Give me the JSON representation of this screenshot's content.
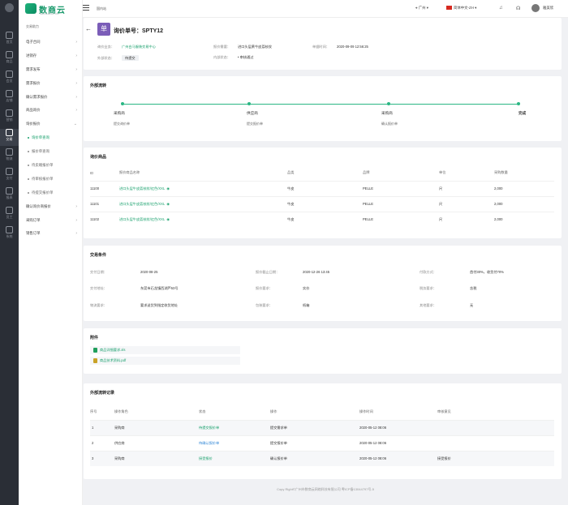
{
  "rail": {
    "items": [
      {
        "label": "首页",
        "active": false
      },
      {
        "label": "商品",
        "active": false
      },
      {
        "label": "会员",
        "active": false
      },
      {
        "label": "店铺",
        "active": false
      },
      {
        "label": "营销",
        "active": false
      },
      {
        "label": "交易",
        "active": true
      },
      {
        "label": "物流",
        "active": false
      },
      {
        "label": "支付",
        "active": false
      },
      {
        "label": "报表",
        "active": false
      },
      {
        "label": "员工",
        "active": false
      },
      {
        "label": "系统",
        "active": false
      }
    ]
  },
  "brand": {
    "name": "数商云",
    "sub": "SHUSHANGYUN"
  },
  "nav": {
    "section": "交易助力",
    "items": [
      {
        "label": "电子合同",
        "arrow": "›"
      },
      {
        "label": "进销存",
        "arrow": "›"
      },
      {
        "label": "需求发布",
        "arrow": "›"
      },
      {
        "label": "需求报价",
        "arrow": "›"
      },
      {
        "label": "确认需求报价",
        "arrow": "›"
      },
      {
        "label": "商品询价",
        "arrow": "›"
      },
      {
        "label": "询价报价",
        "arrow": "⌄"
      }
    ],
    "subitems": [
      {
        "label": "询价单查询",
        "active": true
      },
      {
        "label": "报价单查询",
        "active": false
      },
      {
        "label": "待卖端报价单",
        "active": false
      },
      {
        "label": "待审核报价单",
        "active": false
      },
      {
        "label": "待提交报价单",
        "active": false
      }
    ],
    "items2": [
      {
        "label": "确认询价商报价",
        "arrow": "›"
      },
      {
        "label": "采购订单",
        "arrow": "›"
      },
      {
        "label": "销售订单",
        "arrow": "›"
      }
    ]
  },
  "topbar": {
    "crumb": "国内站",
    "location": "广州",
    "language": "简体中文-ZH",
    "username": "雅美欣"
  },
  "header": {
    "badge": "单",
    "title": "询价单号：SPTY12",
    "fields": [
      {
        "k": "询价业务：",
        "v": "广州白马服装交易中心",
        "green": true
      },
      {
        "k": "报价需要：",
        "v": "进口头层黄牛皮荔枝纹",
        "green": false
      },
      {
        "k": "单据时间：",
        "v": "2020-09-09 12:56:25",
        "green": false
      },
      {
        "k": "外部状态：",
        "v": "待提交",
        "green": false
      },
      {
        "k": "内部状态：",
        "v": "• 审核通过",
        "green": false
      }
    ]
  },
  "flow": {
    "title": "外部流转",
    "steps": [
      {
        "name": "采购商",
        "sub": "提交询价单"
      },
      {
        "name": "供应商",
        "sub": "提交报价单"
      },
      {
        "name": "采购商",
        "sub": "确认报价单"
      },
      {
        "name": "完成",
        "sub": ""
      }
    ]
  },
  "goods": {
    "title": "询价商品",
    "columns": [
      "ID",
      "报价商品名称",
      "品类",
      "品牌",
      "单位",
      "采购数量"
    ],
    "rows": [
      {
        "id": "11100",
        "name": "进口头层牛皮荔枝纹/红色/XXL",
        "cat": "牛皮",
        "brand": "PELLE",
        "unit": "尺",
        "qty": "2,000"
      },
      {
        "id": "11101",
        "name": "进口头层牛皮荔枝纹/红色/XXL",
        "cat": "牛皮",
        "brand": "PELLE",
        "unit": "尺",
        "qty": "2,000"
      },
      {
        "id": "11102",
        "name": "进口头层牛皮荔枝纹/红色/XXL",
        "cat": "牛皮",
        "brand": "PELLE",
        "unit": "尺",
        "qty": "2,000"
      }
    ]
  },
  "terms": {
    "title": "交易条件",
    "rows": [
      [
        {
          "k": "交付日期：",
          "v": "2020-08-25"
        },
        {
          "k": "报价截止日期：",
          "v": "2020-12-26 13:45"
        },
        {
          "k": "付款方式：",
          "v": "首付30%，收货付70%"
        }
      ],
      [
        {
          "k": "交付地址：",
          "v": "东莞市石龙镇西湖芦53号"
        },
        {
          "k": "报价要求：",
          "v": "实价"
        },
        {
          "k": "税务要求：",
          "v": "含税"
        }
      ],
      [
        {
          "k": "物流要求：",
          "v": "要求送货到指定收货地址"
        },
        {
          "k": "包装要求：",
          "v": "纸箱"
        },
        {
          "k": "其他要求：",
          "v": "无"
        }
      ]
    ]
  },
  "attachments": {
    "title": "附件",
    "files": [
      {
        "name": "商品详细要求.xls",
        "color": "#1f9e5b"
      },
      {
        "name": "商品技术资料.pdf",
        "color": "#c9a227"
      }
    ]
  },
  "records": {
    "title": "外部流转记录",
    "columns": [
      "序号",
      "操作角色",
      "状态",
      "操作",
      "操作时间",
      "审核意见"
    ],
    "rows": [
      {
        "no": "1",
        "role": "采购商",
        "status": "待提交报价单",
        "status_color": "#18a06c",
        "op": "提交需求单",
        "time": "2020-05-12 08:06",
        "note": ""
      },
      {
        "no": "2",
        "role": "供应商",
        "status": "待确认报价单",
        "status_color": "#2f86d6",
        "op": "提交报价单",
        "time": "2020-05-12 08:06",
        "note": ""
      },
      {
        "no": "3",
        "role": "采购商",
        "status": "接受报价",
        "status_color": "#18a06c",
        "op": "确认报价单",
        "time": "2020-05-12 08:06",
        "note": "接受报价"
      }
    ]
  },
  "footer": "Copy Right©广州市数商云网络科技有限公司 粤ICP备13044797号-5"
}
